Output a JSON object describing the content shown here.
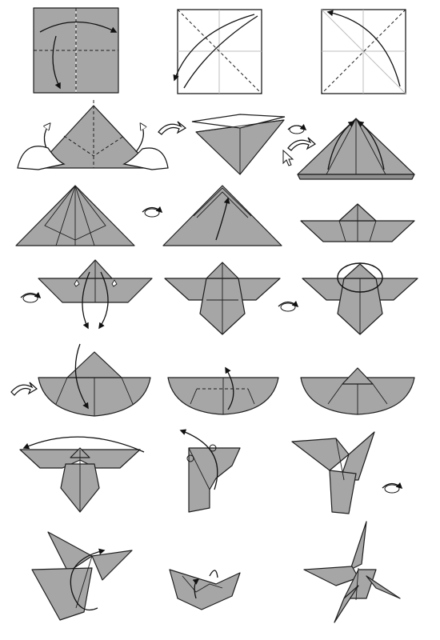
{
  "diagram": {
    "type": "origami-instructions",
    "subject": "butterfly",
    "rows": 7,
    "columns": 3,
    "step_count": 21,
    "colors": {
      "paper": "#a6a6a6",
      "paper_dark": "#8f8f8f",
      "line": "#1e1e1e",
      "background": "#ffffff"
    },
    "icons": [
      "flip-over-icon",
      "turn-over-arrow-icon",
      "pinch-hand-icon",
      "cursor-icon"
    ]
  }
}
